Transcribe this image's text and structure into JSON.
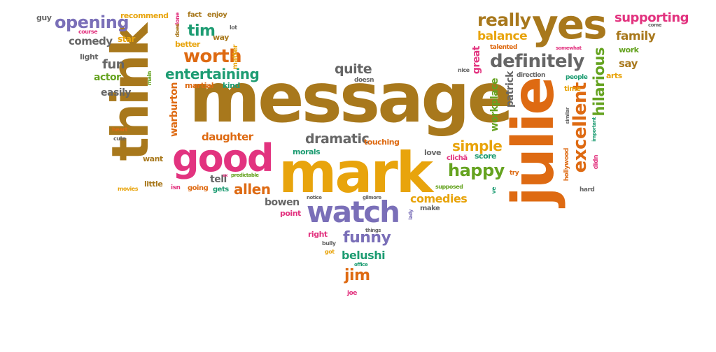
{
  "wordcloud": {
    "palette": {
      "brown": "#a8781c",
      "gold": "#e8a40c",
      "purple": "#7a6fb8",
      "pink": "#e2337f",
      "teal": "#1d9c72",
      "orange": "#de6a12",
      "green": "#65a320",
      "gray": "#666666"
    },
    "words": {
      "message": "message",
      "mark": "mark",
      "think": "think",
      "julie": "julie",
      "yes": "yes",
      "watch": "watch",
      "good": "good",
      "definitely": "definitely",
      "excellent": "excellent",
      "really": "really",
      "funny": "funny",
      "worth": "worth",
      "entertaining": "entertaining",
      "opening": "opening",
      "happy": "happy",
      "dramatic": "dramatic",
      "allen": "allen",
      "tim": "tim",
      "simple": "simple",
      "supporting": "supporting",
      "hilarious": "hilarious",
      "comedies": "comedies",
      "belushi": "belushi",
      "jim": "jim",
      "quite": "quite",
      "balance": "balance",
      "family": "family",
      "daughter": "daughter",
      "comedy": "comedy",
      "fun": "fun",
      "actor": "actor",
      "easily": "easily",
      "patrick": "patrick",
      "workplace": "workplace",
      "warburton": "warburton",
      "bowen": "bowen",
      "say": "say",
      "great": "great",
      "tell": "tell",
      "guy": "guy",
      "recommend": "recommend",
      "fact": "fact",
      "enjoy": "enjoy",
      "star": "star",
      "course": "course",
      "light": "light",
      "better": "better",
      "way": "way",
      "lot": "lot",
      "matter": "matter",
      "done": "done",
      "does": "does",
      "main": "main",
      "martial": "martial",
      "kind": "kind",
      "doesn": "doesn",
      "touching": "touching",
      "morals": "morals",
      "love": "love",
      "cliche": "clichã",
      "score": "score",
      "want": "want",
      "little": "little",
      "isn": "isn",
      "going": "going",
      "gets": "gets",
      "predictable": "predictable",
      "movies": "movies",
      "cute": "cute",
      "heart": "heart",
      "nice": "nice",
      "direction": "direction",
      "talented": "talented",
      "somewhat": "somewhat",
      "work": "work",
      "come": "come",
      "arts": "arts",
      "people": "people",
      "time": "time",
      "similar": "similar",
      "important": "important",
      "didn": "didn",
      "hollywood": "hollywood",
      "hard": "hard",
      "try": "try",
      "supposed": "supposed",
      "ve": "ve",
      "lady": "lady",
      "make": "make",
      "notice": "notice",
      "gilmore": "gilmore",
      "point": "point",
      "right": "right",
      "things": "things",
      "bully": "bully",
      "got": "got",
      "office": "office",
      "joe": "joe",
      "ex": "ex"
    }
  }
}
